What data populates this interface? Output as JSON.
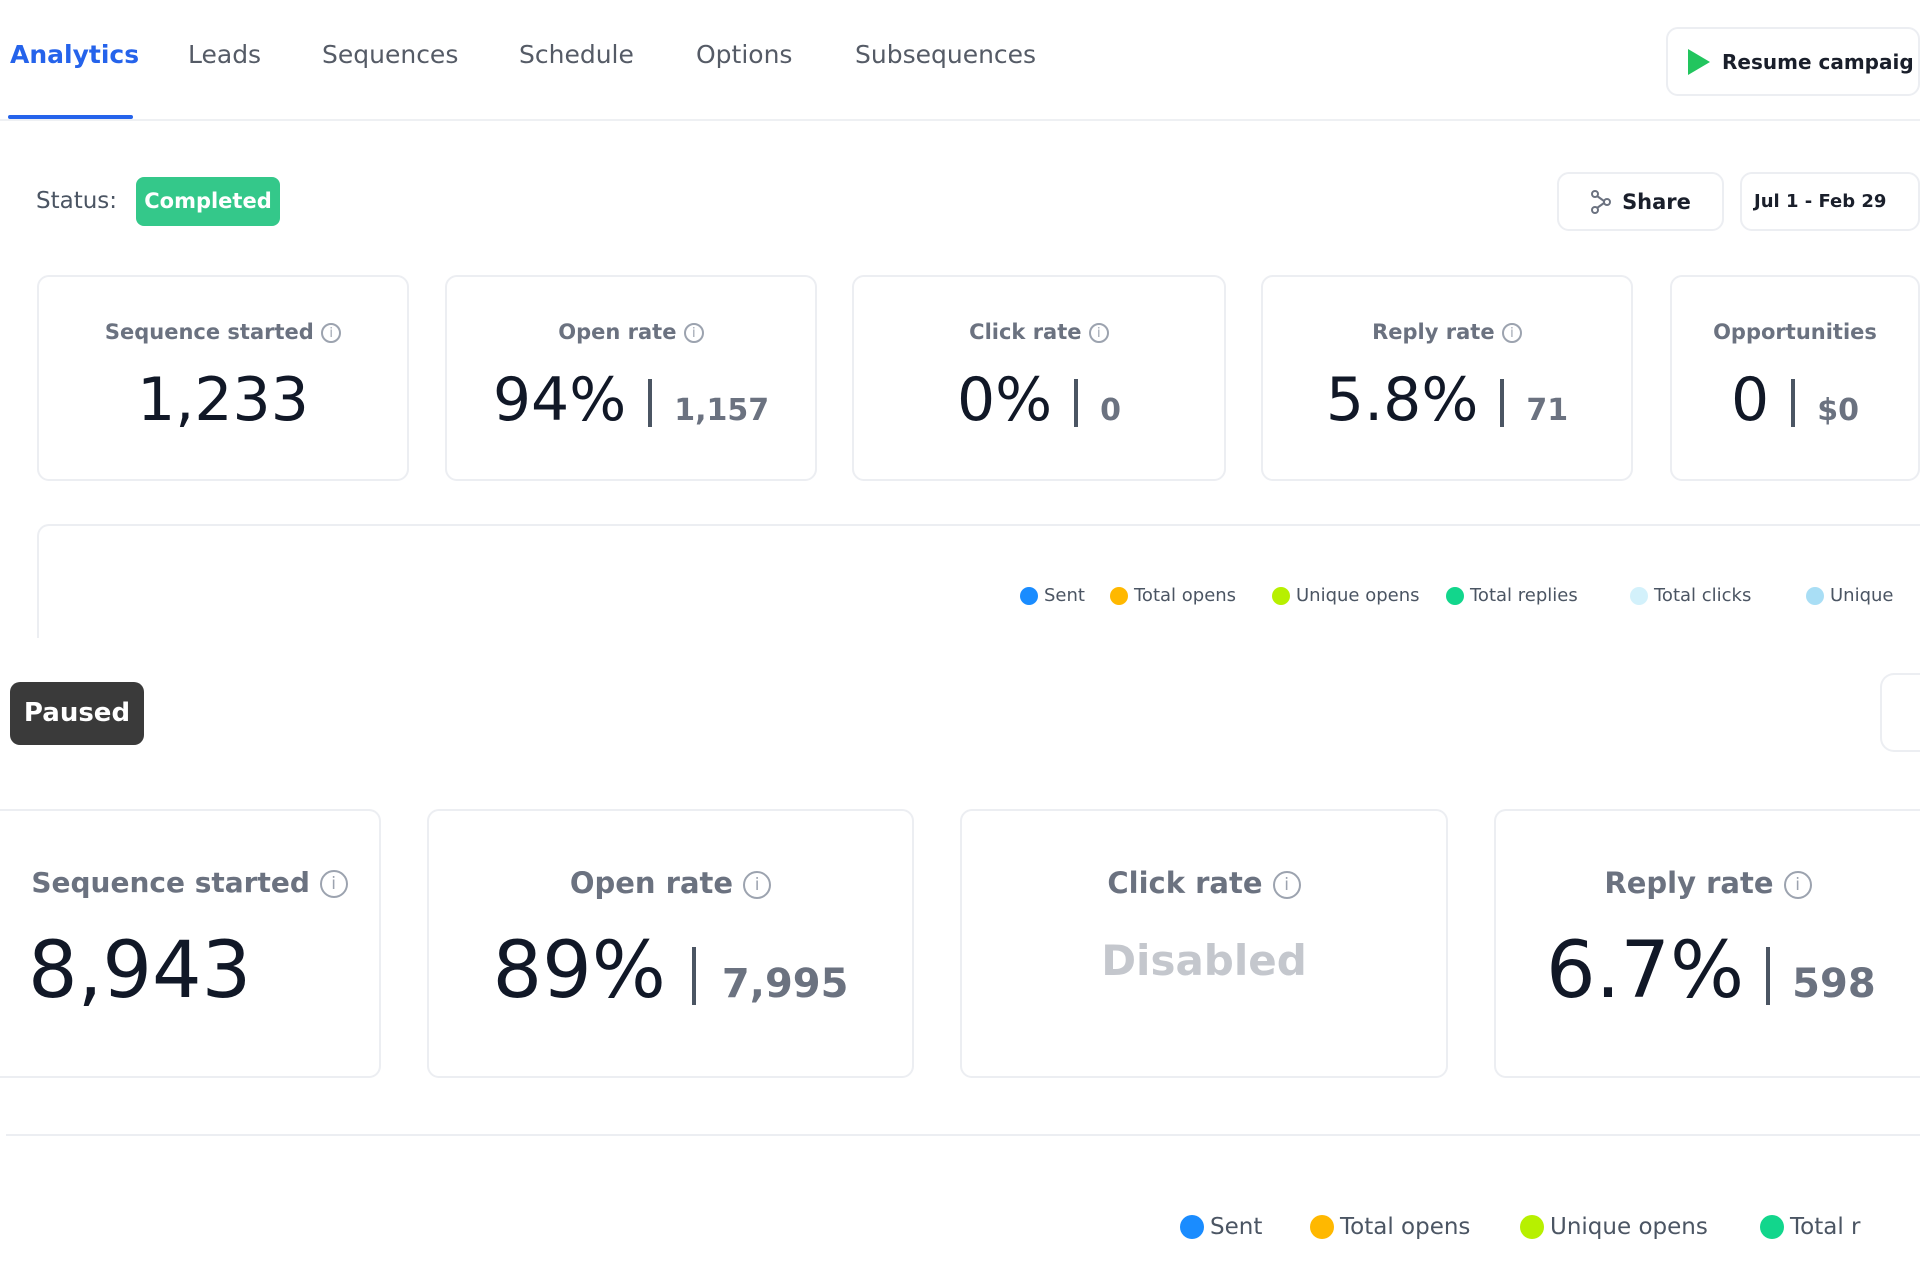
{
  "tabs": [
    {
      "label": "Analytics",
      "active": true
    },
    {
      "label": "Leads"
    },
    {
      "label": "Sequences"
    },
    {
      "label": "Schedule"
    },
    {
      "label": "Options"
    },
    {
      "label": "Subsequences"
    }
  ],
  "resume_label": "Resume campaig",
  "status": {
    "label": "Status:",
    "badge": "Completed",
    "badge_color": "#34c88a"
  },
  "share_label": "Share",
  "date_range": "Jul 1 - Feb 29",
  "cards": [
    {
      "label": "Sequence started",
      "value": "1,233"
    },
    {
      "label": "Open rate",
      "value": "94%",
      "sub": "1,157"
    },
    {
      "label": "Click rate",
      "value": "0%",
      "sub": "0"
    },
    {
      "label": "Reply rate",
      "value": "5.8%",
      "sub": "71"
    },
    {
      "label": "Opportunities",
      "value": "0",
      "sub": "$0"
    }
  ],
  "legend": [
    {
      "label": "Sent",
      "color": "#1a8cff"
    },
    {
      "label": "Total opens",
      "color": "#ffb800"
    },
    {
      "label": "Unique opens",
      "color": "#b7f000"
    },
    {
      "label": "Total replies",
      "color": "#12d68c"
    },
    {
      "label": "Total clicks",
      "color": "#d3f1fb"
    },
    {
      "label": "Unique",
      "color": "#a9def5"
    }
  ],
  "paused_badge": "Paused",
  "cards2": [
    {
      "label": "Sequence started",
      "value": "8,943"
    },
    {
      "label": "Open rate",
      "value": "89%",
      "sub": "7,995"
    },
    {
      "label": "Click rate",
      "value": "Disabled"
    },
    {
      "label": "Reply rate",
      "value": "6.7%",
      "sub": "598"
    }
  ],
  "legend2": [
    {
      "label": "Sent",
      "color": "#1a8cff"
    },
    {
      "label": "Total opens",
      "color": "#ffb800"
    },
    {
      "label": "Unique opens",
      "color": "#b7f000"
    },
    {
      "label": "Total r",
      "color": "#12d68c"
    }
  ]
}
